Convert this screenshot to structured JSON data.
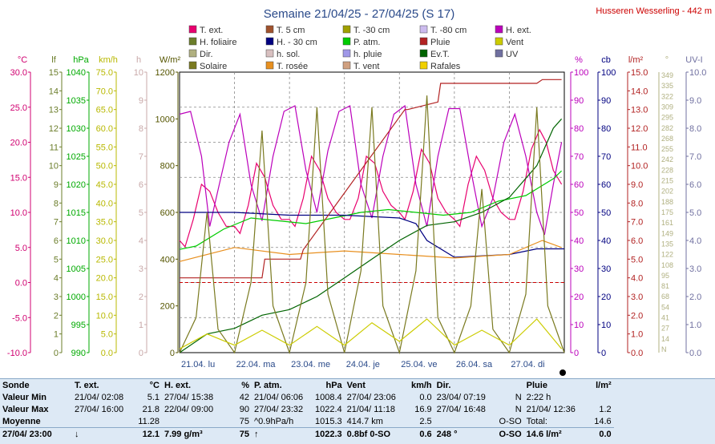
{
  "header": {
    "title": "Semaine 21/04/25 - 27/04/25 (S 17)",
    "station": "Husseren Wesserling - 442 m"
  },
  "legend": [
    {
      "label": "T. ext.",
      "color": "#e8006e"
    },
    {
      "label": "T. 5 cm",
      "color": "#a0522d"
    },
    {
      "label": "T. -30 cm",
      "color": "#a0a000"
    },
    {
      "label": "T. -80 cm",
      "color": "#ccbbee"
    },
    {
      "label": "H. ext.",
      "color": "#bb00bb"
    },
    {
      "label": "H. foliaire",
      "color": "#6b7d2a"
    },
    {
      "label": "H. - 30 cm",
      "color": "#000080"
    },
    {
      "label": "P. atm.",
      "color": "#00cc00"
    },
    {
      "label": "Pluie",
      "color": "#b22222"
    },
    {
      "label": "Vent",
      "color": "#cccc00"
    },
    {
      "label": "Dir.",
      "color": "#b0b080"
    },
    {
      "label": "h. sol.",
      "color": "#d8c0c0"
    },
    {
      "label": "h. pluie",
      "color": "#a098e8"
    },
    {
      "label": "Ev.T.",
      "color": "#006400"
    },
    {
      "label": "UV",
      "color": "#7070a0"
    },
    {
      "label": "Solaire",
      "color": "#7a7a20"
    },
    {
      "label": "T. rosée",
      "color": "#e89020"
    },
    {
      "label": "T. vent",
      "color": "#d0a080"
    },
    {
      "label": "Rafales",
      "color": "#f0d000"
    }
  ],
  "axes_left": [
    {
      "unit": "°C",
      "color": "#d00070",
      "min": -10,
      "max": 30,
      "step": 5,
      "fmt": 1
    },
    {
      "unit": "lf",
      "color": "#6b7d2a",
      "min": 0,
      "max": 15,
      "step": 1,
      "fmt": 0
    },
    {
      "unit": "hPa",
      "color": "#00aa00",
      "min": 990,
      "max": 1040,
      "step": 5,
      "fmt": 0
    },
    {
      "unit": "km/h",
      "color": "#b8b800",
      "min": 0,
      "max": 75,
      "step": 5,
      "fmt": 1
    },
    {
      "unit": "h",
      "color": "#c8a8a8",
      "min": 0,
      "max": 10,
      "step": 1,
      "fmt": 0
    },
    {
      "unit": "W/m²",
      "color": "#555500",
      "min": 0,
      "max": 1200,
      "step": 200,
      "fmt": 0
    }
  ],
  "axes_right": [
    {
      "unit": "%",
      "color": "#bb00bb",
      "min": 0,
      "max": 100,
      "step": 10,
      "fmt": 0
    },
    {
      "unit": "cb",
      "color": "#000080",
      "min": 0,
      "max": 100,
      "step": 10,
      "fmt": 0
    },
    {
      "unit": "l/m²",
      "color": "#b22222",
      "min": 0,
      "max": 15,
      "step": 1,
      "fmt": 1
    },
    {
      "unit": "°",
      "color": "#b0b080",
      "ticks": [
        "N",
        "14",
        "27",
        "41",
        "54",
        "68",
        "81",
        "95",
        "108",
        "122",
        "135",
        "149",
        "161",
        "175",
        "188",
        "202",
        "215",
        "228",
        "242",
        "255",
        "268",
        "282",
        "295",
        "309",
        "322",
        "335",
        "349"
      ]
    },
    {
      "unit": "UV-I",
      "color": "#7070a0",
      "min": 0,
      "max": 10,
      "step": 1,
      "fmt": 1
    }
  ],
  "days": [
    "21.04. lu",
    "22.04. ma",
    "23.04. me",
    "24.04. je",
    "25.04. ve",
    "26.04. sa",
    "27.04. di"
  ],
  "chart_data": {
    "type": "line",
    "x_unit": "day index (0 = 21.04 00:00)",
    "x_range": [
      0,
      7
    ],
    "series": [
      {
        "name": "T. ext.",
        "axis": "°C",
        "x": [
          0,
          0.1,
          0.25,
          0.4,
          0.55,
          0.7,
          0.85,
          1,
          1.1,
          1.25,
          1.4,
          1.55,
          1.7,
          1.85,
          2,
          2.1,
          2.25,
          2.4,
          2.55,
          2.7,
          2.85,
          3,
          3.1,
          3.25,
          3.4,
          3.55,
          3.7,
          3.85,
          4,
          4.1,
          4.25,
          4.4,
          4.55,
          4.7,
          4.85,
          5,
          5.1,
          5.25,
          5.4,
          5.55,
          5.7,
          5.85,
          6,
          6.1,
          6.25,
          6.4,
          6.55,
          6.67,
          6.8,
          6.95
        ],
        "y": [
          6,
          5.1,
          9,
          14,
          13,
          10,
          8,
          8,
          7,
          11,
          17,
          15,
          11,
          9,
          9,
          8,
          12,
          18,
          16,
          12,
          10,
          9,
          9,
          12,
          18,
          17,
          13,
          11,
          10,
          9,
          13,
          19,
          17,
          12,
          10,
          9,
          8,
          14,
          18,
          16,
          12,
          10,
          9,
          9,
          13,
          19,
          21.8,
          20,
          16,
          14
        ]
      },
      {
        "name": "H. ext.",
        "axis": "%",
        "x": [
          0,
          0.2,
          0.4,
          0.55,
          0.7,
          0.9,
          1.1,
          1.3,
          1.5,
          1.7,
          1.9,
          2.1,
          2.3,
          2.5,
          2.7,
          2.9,
          3.1,
          3.3,
          3.5,
          3.7,
          3.9,
          4.1,
          4.3,
          4.5,
          4.7,
          4.9,
          5.1,
          5.3,
          5.5,
          5.7,
          5.9,
          6.1,
          6.3,
          6.5,
          6.64,
          6.8,
          6.95
        ],
        "y": [
          85,
          86,
          70,
          45,
          58,
          75,
          85,
          60,
          47,
          70,
          86,
          88,
          65,
          50,
          72,
          86,
          88,
          60,
          48,
          70,
          85,
          88,
          60,
          45,
          70,
          87,
          87,
          65,
          45,
          55,
          75,
          85,
          70,
          50,
          42,
          60,
          75
        ]
      },
      {
        "name": "P. atm.",
        "axis": "hPa",
        "x": [
          0,
          0.3,
          0.8,
          1.3,
          1.8,
          2.3,
          2.8,
          3.3,
          3.8,
          4.3,
          4.8,
          5.3,
          5.8,
          6.3,
          6.8,
          6.95
        ],
        "y": [
          1008.4,
          1009,
          1012,
          1014,
          1013.5,
          1013,
          1014,
          1015,
          1015.5,
          1015,
          1014.5,
          1015,
          1017,
          1018,
          1021,
          1022.4
        ]
      },
      {
        "name": "H. - 30 cm",
        "axis": "cb",
        "x": [
          0,
          1,
          2,
          3,
          4,
          4.3,
          4.5,
          5,
          6,
          6.5,
          7
        ],
        "y": [
          50,
          50,
          49,
          49,
          48,
          46,
          40,
          34,
          35,
          37,
          37
        ]
      },
      {
        "name": "T. rosée",
        "axis": "°C",
        "x": [
          0,
          1,
          2,
          3,
          4,
          5,
          6,
          6.6,
          6.95
        ],
        "y": [
          3,
          5,
          4,
          4.5,
          4,
          3.5,
          4,
          6,
          5
        ]
      },
      {
        "name": "Pluie",
        "axis": "l/m²",
        "x": [
          0,
          0.9,
          0.95,
          1.5,
          1.55,
          2.2,
          2.25,
          4.1,
          4.15,
          4.7,
          4.75,
          6.5,
          6.6,
          6.95
        ],
        "y": [
          4,
          4,
          4,
          4,
          5,
          5,
          5.5,
          13,
          13,
          13.4,
          14.4,
          14.4,
          14.6,
          14.6
        ]
      },
      {
        "name": "Ev.T.",
        "axis": "l/m²",
        "x": [
          0,
          0.5,
          1,
          1.5,
          2,
          2.5,
          3,
          3.5,
          4,
          4.5,
          5,
          5.5,
          6,
          6.5,
          6.8,
          6.95
        ],
        "y": [
          0,
          1,
          1.3,
          2,
          2.3,
          3,
          4,
          5,
          6,
          6.8,
          7,
          7.5,
          8.3,
          10,
          12,
          12.5
        ]
      },
      {
        "name": "Solaire",
        "axis": "W/m²",
        "x": [
          0,
          0.3,
          0.5,
          0.7,
          1,
          1.3,
          1.5,
          1.7,
          2,
          2.3,
          2.5,
          2.7,
          3,
          3.3,
          3.5,
          3.7,
          4,
          4.3,
          4.5,
          4.7,
          5,
          5.3,
          5.5,
          5.7,
          6,
          6.3,
          6.5,
          6.7,
          7
        ],
        "y": [
          0,
          150,
          600,
          100,
          0,
          300,
          950,
          200,
          0,
          300,
          1050,
          250,
          0,
          350,
          1050,
          200,
          0,
          350,
          1100,
          150,
          0,
          200,
          700,
          100,
          0,
          250,
          1050,
          200,
          0
        ]
      },
      {
        "name": "Vent",
        "axis": "km/h",
        "x": [
          0,
          0.5,
          1,
          1.5,
          2,
          2.5,
          3,
          3.5,
          4,
          4.5,
          5,
          5.5,
          6,
          6.5,
          6.95
        ],
        "y": [
          1,
          5,
          2,
          6,
          2,
          7,
          2,
          8,
          3,
          9,
          2,
          6,
          2,
          9,
          1
        ]
      }
    ]
  },
  "stats": {
    "headers": [
      "Sonde",
      "T. ext.",
      "°C",
      "H. ext.",
      "%",
      "P. atm.",
      "hPa",
      "Vent",
      "km/h",
      "Dir.",
      "",
      "Pluie",
      "l/m²"
    ],
    "rows": [
      {
        "label": "Valeur Min",
        "cells": [
          "21/04/ 02:08",
          "5.1",
          "27/04/ 15:38",
          "42",
          "21/04/ 06:06",
          "1008.4",
          "27/04/ 23:06",
          "0.0",
          "23/04/ 07:19",
          "N",
          "2:22 h",
          ""
        ]
      },
      {
        "label": "Valeur Max",
        "cells": [
          "27/04/ 16:00",
          "21.8",
          "22/04/ 09:00",
          "90",
          "27/04/ 23:32",
          "1022.4",
          "21/04/ 11:18",
          "16.9",
          "27/04/ 16:48",
          "N",
          "21/04/ 12:36",
          "1.2"
        ]
      },
      {
        "label": "Moyenne",
        "cells": [
          "",
          "11.28",
          "",
          "75",
          "^0.9hPa/h",
          "1015.3",
          "414.7 km",
          "2.5",
          "",
          "O-SO",
          "Total:",
          "14.6"
        ]
      },
      {
        "label": "27/04/ 23:00",
        "cells": [
          "↓",
          "12.1",
          "7.99 g/m³",
          "75",
          "↑",
          "1022.3",
          "0.8bf 0-SO",
          "0.6",
          "248 °",
          "O-SO",
          "14.6 l/m²",
          "0.0"
        ]
      }
    ]
  }
}
